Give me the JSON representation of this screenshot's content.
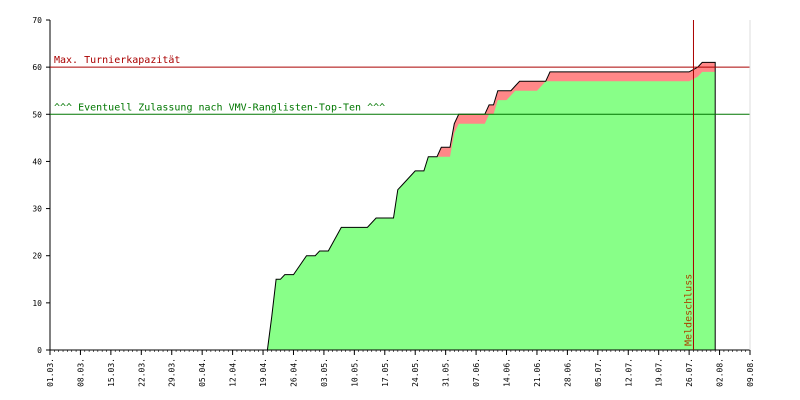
{
  "chart_data": {
    "type": "area",
    "title": "",
    "xlabel": "",
    "ylabel": "",
    "ylim": [
      0,
      70
    ],
    "yticks": [
      0,
      10,
      20,
      30,
      40,
      50,
      60,
      70
    ],
    "x_start": "2024-03-01",
    "x_end": "2024-08-09",
    "x_ticks": [
      "01.03.",
      "08.03.",
      "15.03.",
      "22.03.",
      "29.03.",
      "05.04.",
      "12.04.",
      "19.04.",
      "26.04.",
      "03.05.",
      "10.05.",
      "17.05.",
      "24.05.",
      "31.05.",
      "07.06.",
      "14.06.",
      "21.06.",
      "28.06.",
      "05.07.",
      "12.07.",
      "19.07.",
      "26.07.",
      "02.08.",
      "09.08."
    ],
    "grid": false,
    "colors": {
      "confirmed_fill": "#88ff88",
      "waitlist_fill": "#ff8888",
      "capacity_line": "#aa0000",
      "ranking_line": "#007700",
      "deadline_line": "#aa0000",
      "deadline_label": "#aa4400"
    },
    "series": [
      {
        "role": "total",
        "points": [
          [
            "2024-04-20",
            0
          ],
          [
            "2024-04-21",
            7
          ],
          [
            "2024-04-22",
            15
          ],
          [
            "2024-04-23",
            15
          ],
          [
            "2024-04-24",
            16
          ],
          [
            "2024-04-26",
            16
          ],
          [
            "2024-04-29",
            20
          ],
          [
            "2024-05-01",
            20
          ],
          [
            "2024-05-02",
            21
          ],
          [
            "2024-05-04",
            21
          ],
          [
            "2024-05-07",
            26
          ],
          [
            "2024-05-13",
            26
          ],
          [
            "2024-05-15",
            28
          ],
          [
            "2024-05-19",
            28
          ],
          [
            "2024-05-20",
            34
          ],
          [
            "2024-05-21",
            35
          ],
          [
            "2024-05-24",
            38
          ],
          [
            "2024-05-26",
            38
          ],
          [
            "2024-05-27",
            41
          ],
          [
            "2024-05-29",
            41
          ],
          [
            "2024-05-30",
            43
          ],
          [
            "2024-06-01",
            43
          ],
          [
            "2024-06-02",
            48
          ],
          [
            "2024-06-03",
            50
          ],
          [
            "2024-06-09",
            50
          ],
          [
            "2024-06-10",
            52
          ],
          [
            "2024-06-11",
            52
          ],
          [
            "2024-06-12",
            55
          ],
          [
            "2024-06-15",
            55
          ],
          [
            "2024-06-16",
            56
          ],
          [
            "2024-06-17",
            57
          ],
          [
            "2024-06-23",
            57
          ],
          [
            "2024-06-24",
            59
          ],
          [
            "2024-07-26",
            59
          ],
          [
            "2024-07-28",
            60
          ],
          [
            "2024-07-29",
            61
          ],
          [
            "2024-08-01",
            61
          ],
          [
            "2024-08-01",
            0
          ]
        ]
      },
      {
        "role": "confirmed",
        "points": [
          [
            "2024-04-20",
            0
          ],
          [
            "2024-04-21",
            7
          ],
          [
            "2024-04-22",
            15
          ],
          [
            "2024-04-23",
            15
          ],
          [
            "2024-04-24",
            16
          ],
          [
            "2024-04-26",
            16
          ],
          [
            "2024-04-29",
            20
          ],
          [
            "2024-05-01",
            20
          ],
          [
            "2024-05-02",
            21
          ],
          [
            "2024-05-04",
            21
          ],
          [
            "2024-05-07",
            26
          ],
          [
            "2024-05-13",
            26
          ],
          [
            "2024-05-15",
            28
          ],
          [
            "2024-05-19",
            28
          ],
          [
            "2024-05-20",
            34
          ],
          [
            "2024-05-21",
            35
          ],
          [
            "2024-05-24",
            38
          ],
          [
            "2024-05-26",
            38
          ],
          [
            "2024-05-27",
            41
          ],
          [
            "2024-06-01",
            41
          ],
          [
            "2024-06-02",
            46
          ],
          [
            "2024-06-03",
            48
          ],
          [
            "2024-06-09",
            48
          ],
          [
            "2024-06-10",
            50
          ],
          [
            "2024-06-11",
            50
          ],
          [
            "2024-06-12",
            53
          ],
          [
            "2024-06-14",
            53
          ],
          [
            "2024-06-16",
            55
          ],
          [
            "2024-06-21",
            55
          ],
          [
            "2024-06-23",
            57
          ],
          [
            "2024-07-26",
            57
          ],
          [
            "2024-07-28",
            58
          ],
          [
            "2024-07-29",
            59
          ],
          [
            "2024-08-01",
            59
          ],
          [
            "2024-08-01",
            0
          ]
        ]
      }
    ],
    "reference_lines": [
      {
        "id": "capacity",
        "y": 60,
        "label": "Max. Turnierkapazität"
      },
      {
        "id": "ranking",
        "y": 50,
        "label": "^^^ Eventuell Zulassung nach VMV-Ranglisten-Top-Ten ^^^"
      }
    ],
    "deadline": {
      "date": "2024-07-27",
      "label": "Meldeschluss"
    }
  }
}
